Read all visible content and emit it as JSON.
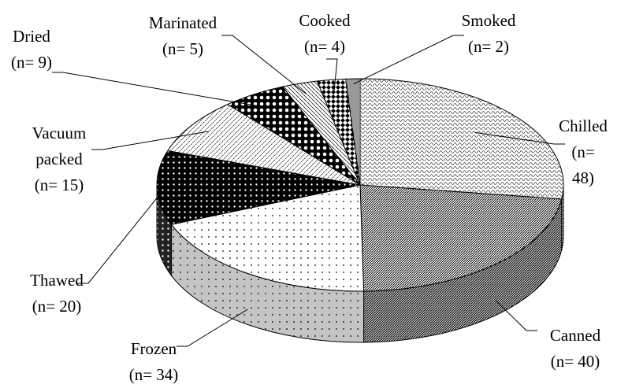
{
  "chart_data": {
    "type": "pie3d",
    "categories": [
      "Chilled",
      "Canned",
      "Frozen",
      "Thawed",
      "Vacuum packed",
      "Dried",
      "Marinated",
      "Cooked",
      "Smoked"
    ],
    "values": [
      48,
      40,
      34,
      20,
      15,
      9,
      5,
      4,
      2
    ],
    "value_labels": [
      "(n= 48)",
      "(n= 40)",
      "(n= 34)",
      "(n= 20)",
      "(n= 15)",
      "(n= 9)",
      "(n= 5)",
      "(n= 4)",
      "(n= 2)"
    ]
  }
}
